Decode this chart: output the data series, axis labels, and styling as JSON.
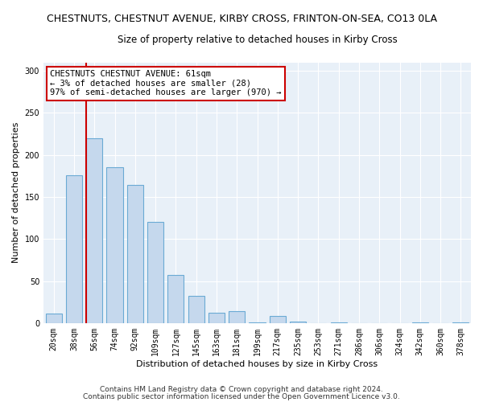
{
  "title_line1": "CHESTNUTS, CHESTNUT AVENUE, KIRBY CROSS, FRINTON-ON-SEA, CO13 0LA",
  "title_line2": "Size of property relative to detached houses in Kirby Cross",
  "xlabel": "Distribution of detached houses by size in Kirby Cross",
  "ylabel": "Number of detached properties",
  "categories": [
    "20sqm",
    "38sqm",
    "56sqm",
    "74sqm",
    "92sqm",
    "109sqm",
    "127sqm",
    "145sqm",
    "163sqm",
    "181sqm",
    "199sqm",
    "217sqm",
    "235sqm",
    "253sqm",
    "271sqm",
    "286sqm",
    "306sqm",
    "324sqm",
    "342sqm",
    "360sqm",
    "378sqm"
  ],
  "values": [
    11,
    176,
    220,
    185,
    164,
    120,
    57,
    32,
    12,
    14,
    1,
    8,
    2,
    0,
    1,
    0,
    0,
    0,
    1,
    0,
    1
  ],
  "bar_color": "#c5d8ed",
  "bar_edge_color": "#6aaad4",
  "vline_index": 2,
  "vline_color": "#cc0000",
  "annotation_text": "CHESTNUTS CHESTNUT AVENUE: 61sqm\n← 3% of detached houses are smaller (28)\n97% of semi-detached houses are larger (970) →",
  "annotation_box_color": "white",
  "annotation_box_edge_color": "#cc0000",
  "ylim": [
    0,
    310
  ],
  "yticks": [
    0,
    50,
    100,
    150,
    200,
    250,
    300
  ],
  "footnote1": "Contains HM Land Registry data © Crown copyright and database right 2024.",
  "footnote2": "Contains public sector information licensed under the Open Government Licence v3.0.",
  "background_color": "#e8f0f8",
  "grid_color": "white",
  "title_fontsize": 9,
  "subtitle_fontsize": 8.5,
  "axis_label_fontsize": 8,
  "tick_fontsize": 7,
  "annotation_fontsize": 7.5,
  "footnote_fontsize": 6.5
}
